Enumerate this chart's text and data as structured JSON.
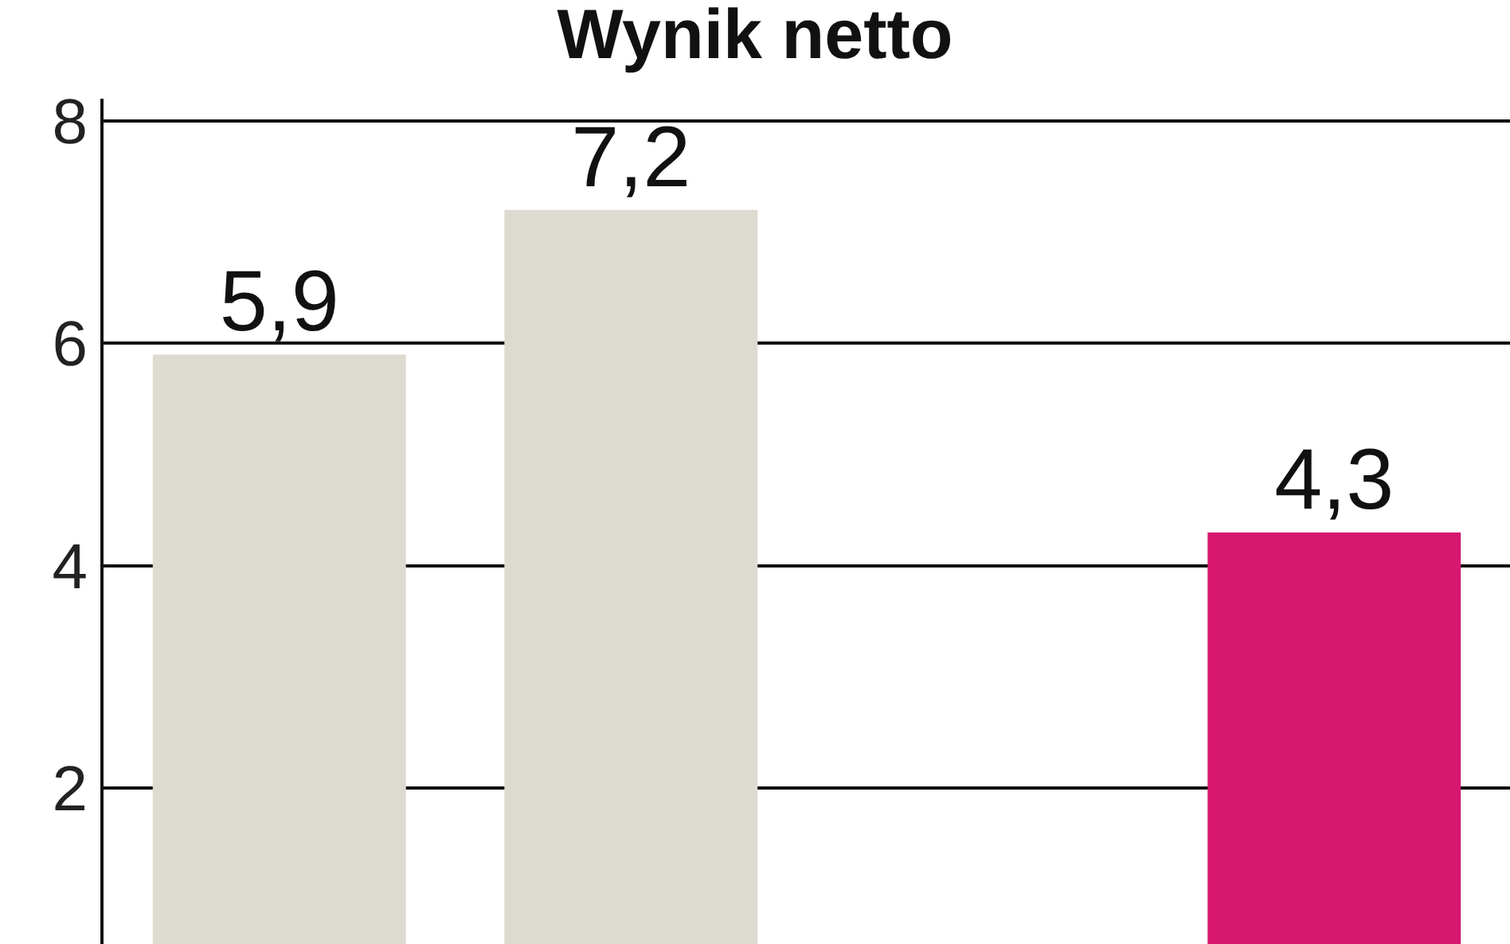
{
  "chart_data": {
    "type": "bar",
    "title": "Wynik netto",
    "categories": [
      null,
      null,
      null,
      null
    ],
    "values": [
      5.9,
      7.2,
      null,
      4.3
    ],
    "colors": [
      "#dddbd0",
      "#dddbd0",
      "#dddbd0",
      "#d8176f"
    ],
    "value_labels": [
      "5,9",
      "7,2",
      null,
      "4,3"
    ],
    "ylim": [
      0.6,
      8.2
    ],
    "yticks": [
      2,
      4,
      6,
      8
    ],
    "grid": "y",
    "legend": false
  }
}
